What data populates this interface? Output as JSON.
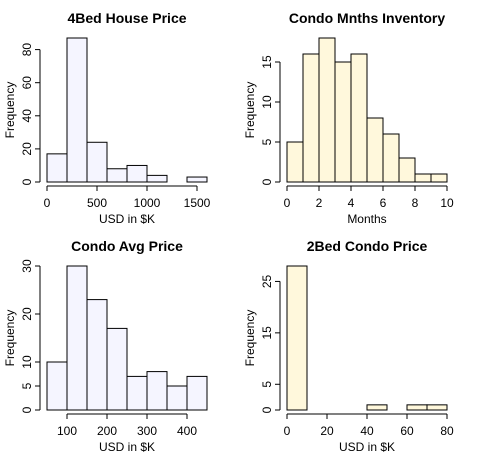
{
  "chart_data": [
    {
      "type": "histogram",
      "title": "4Bed House Price",
      "x_label": "USD in $K",
      "y_label": "Frequency",
      "color": "#f5f5ff",
      "bins": [
        0,
        200,
        400,
        600,
        800,
        1000,
        1200,
        1400,
        1600
      ],
      "values": [
        17,
        87,
        24,
        8,
        10,
        4,
        0,
        3
      ],
      "xlim": [
        0,
        1600
      ],
      "xticks": [
        0,
        500,
        1000,
        1500
      ],
      "ylim": [
        0,
        87
      ],
      "yticks": [
        0,
        20,
        40,
        60,
        80
      ]
    },
    {
      "type": "histogram",
      "title": "Condo Mnths Inventory",
      "x_label": "Months",
      "y_label": "Frequency",
      "color": "#fff8dc",
      "bins": [
        0,
        1,
        2,
        3,
        4,
        5,
        6,
        7,
        8,
        9,
        10
      ],
      "values": [
        5,
        16,
        18,
        15,
        16,
        8,
        6,
        3,
        1,
        1
      ],
      "xlim": [
        0,
        10
      ],
      "xticks": [
        0,
        2,
        4,
        6,
        8,
        10
      ],
      "ylim": [
        0,
        18
      ],
      "yticks": [
        0,
        5,
        10,
        15
      ]
    },
    {
      "type": "histogram",
      "title": "Condo Avg Price",
      "x_label": "USD in $K",
      "y_label": "Frequency",
      "color": "#f5f5ff",
      "bins": [
        50,
        100,
        150,
        200,
        250,
        300,
        350,
        400,
        450
      ],
      "values": [
        10,
        30,
        23,
        17,
        7,
        8,
        5,
        7
      ],
      "xlim": [
        50,
        450
      ],
      "xticks": [
        100,
        200,
        300,
        400
      ],
      "ylim": [
        0,
        30
      ],
      "yticks": [
        0,
        5,
        10,
        20,
        30
      ]
    },
    {
      "type": "histogram",
      "title": "2Bed Condo Price",
      "x_label": "USD in $K",
      "y_label": "Frequency",
      "color": "#fff8dc",
      "bins": [
        0,
        10,
        20,
        30,
        40,
        50,
        60,
        70,
        80
      ],
      "values": [
        28,
        0,
        0,
        0,
        1,
        0,
        1,
        1
      ],
      "xlim": [
        0,
        80
      ],
      "xticks": [
        0,
        20,
        40,
        60,
        80
      ],
      "ylim": [
        0,
        28
      ],
      "yticks": [
        0,
        5,
        15,
        25
      ]
    }
  ]
}
